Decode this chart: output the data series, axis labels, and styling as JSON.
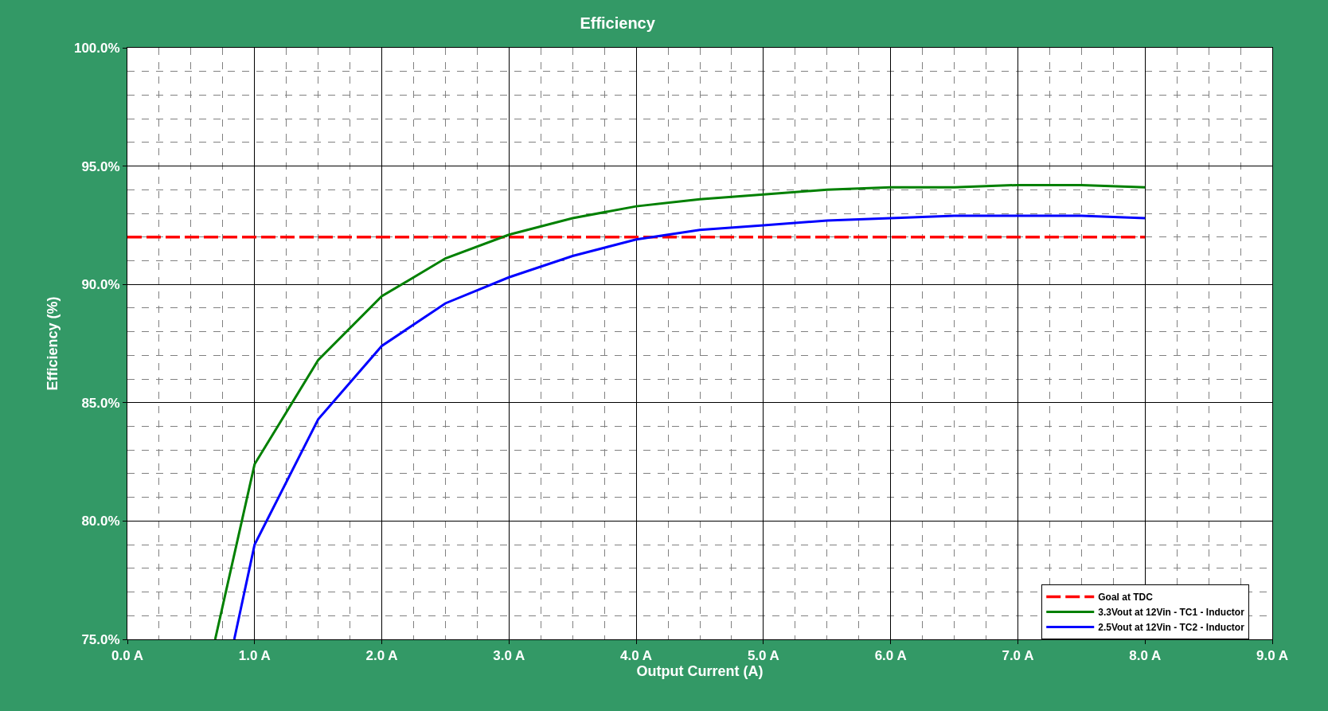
{
  "chart_data": {
    "type": "line",
    "title": "Efficiency",
    "xlabel": "Output Current (A)",
    "ylabel": "Efficiency (%)",
    "xlim": [
      0,
      9
    ],
    "ylim": [
      75,
      100
    ],
    "xticks": [
      {
        "value": 0,
        "label": "0.0 A"
      },
      {
        "value": 1,
        "label": "1.0 A"
      },
      {
        "value": 2,
        "label": "2.0 A"
      },
      {
        "value": 3,
        "label": "3.0 A"
      },
      {
        "value": 4,
        "label": "4.0 A"
      },
      {
        "value": 5,
        "label": "5.0 A"
      },
      {
        "value": 6,
        "label": "6.0 A"
      },
      {
        "value": 7,
        "label": "7.0 A"
      },
      {
        "value": 8,
        "label": "8.0 A"
      },
      {
        "value": 9,
        "label": "9.0 A"
      }
    ],
    "yticks": [
      {
        "value": 75,
        "label": "75.0%"
      },
      {
        "value": 80,
        "label": "80.0%"
      },
      {
        "value": 85,
        "label": "85.0%"
      },
      {
        "value": 90,
        "label": "90.0%"
      },
      {
        "value": 95,
        "label": "95.0%"
      },
      {
        "value": 100,
        "label": "100.0%"
      }
    ],
    "grid": true,
    "legend": "bottom right",
    "series": [
      {
        "name": "Goal at TDC",
        "color": "#ff0000",
        "line_style": "dashed",
        "x": [
          0,
          8
        ],
        "values": [
          92.0,
          92.0
        ]
      },
      {
        "name": "3.3Vout at 12Vin - TC1 - Inductor",
        "color": "#008000",
        "line_style": "solid",
        "x": [
          0.69,
          1.0,
          1.5,
          2.0,
          2.5,
          3.0,
          3.5,
          4.0,
          4.5,
          5.0,
          5.5,
          6.0,
          6.5,
          7.0,
          7.5,
          8.0
        ],
        "values": [
          75.0,
          82.4,
          86.8,
          89.5,
          91.1,
          92.1,
          92.8,
          93.3,
          93.6,
          93.8,
          94.0,
          94.1,
          94.1,
          94.2,
          94.2,
          94.1
        ]
      },
      {
        "name": "2.5Vout at 12Vin - TC2 - Inductor",
        "color": "#0000ff",
        "line_style": "solid",
        "x": [
          0.84,
          1.0,
          1.5,
          2.0,
          2.5,
          3.0,
          3.5,
          4.0,
          4.5,
          5.0,
          5.5,
          6.0,
          6.5,
          7.0,
          7.5,
          8.0
        ],
        "values": [
          75.0,
          79.0,
          84.3,
          87.4,
          89.2,
          90.3,
          91.2,
          91.9,
          92.3,
          92.5,
          92.7,
          92.8,
          92.9,
          92.9,
          92.9,
          92.8
        ]
      }
    ]
  }
}
